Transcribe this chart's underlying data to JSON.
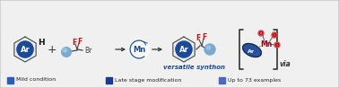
{
  "bg_color": "#f0f0f0",
  "border_color": "#bbbbbb",
  "blue_dark": "#1a4a9a",
  "blue_circle": "#2860a8",
  "red_color": "#cc1111",
  "dark_red": "#990022",
  "text_color": "#222222",
  "legend_colors": [
    "#2a5cb8",
    "#1a3a8a",
    "#4a6ab8"
  ],
  "legend_labels": [
    "Mild condition",
    "Late stage modification",
    "Up to 73 examples"
  ],
  "synthon_label": "versatile synthon",
  "via_label": "via",
  "arene_color": "#1a4a9a",
  "ball_color": "#7aaad0"
}
